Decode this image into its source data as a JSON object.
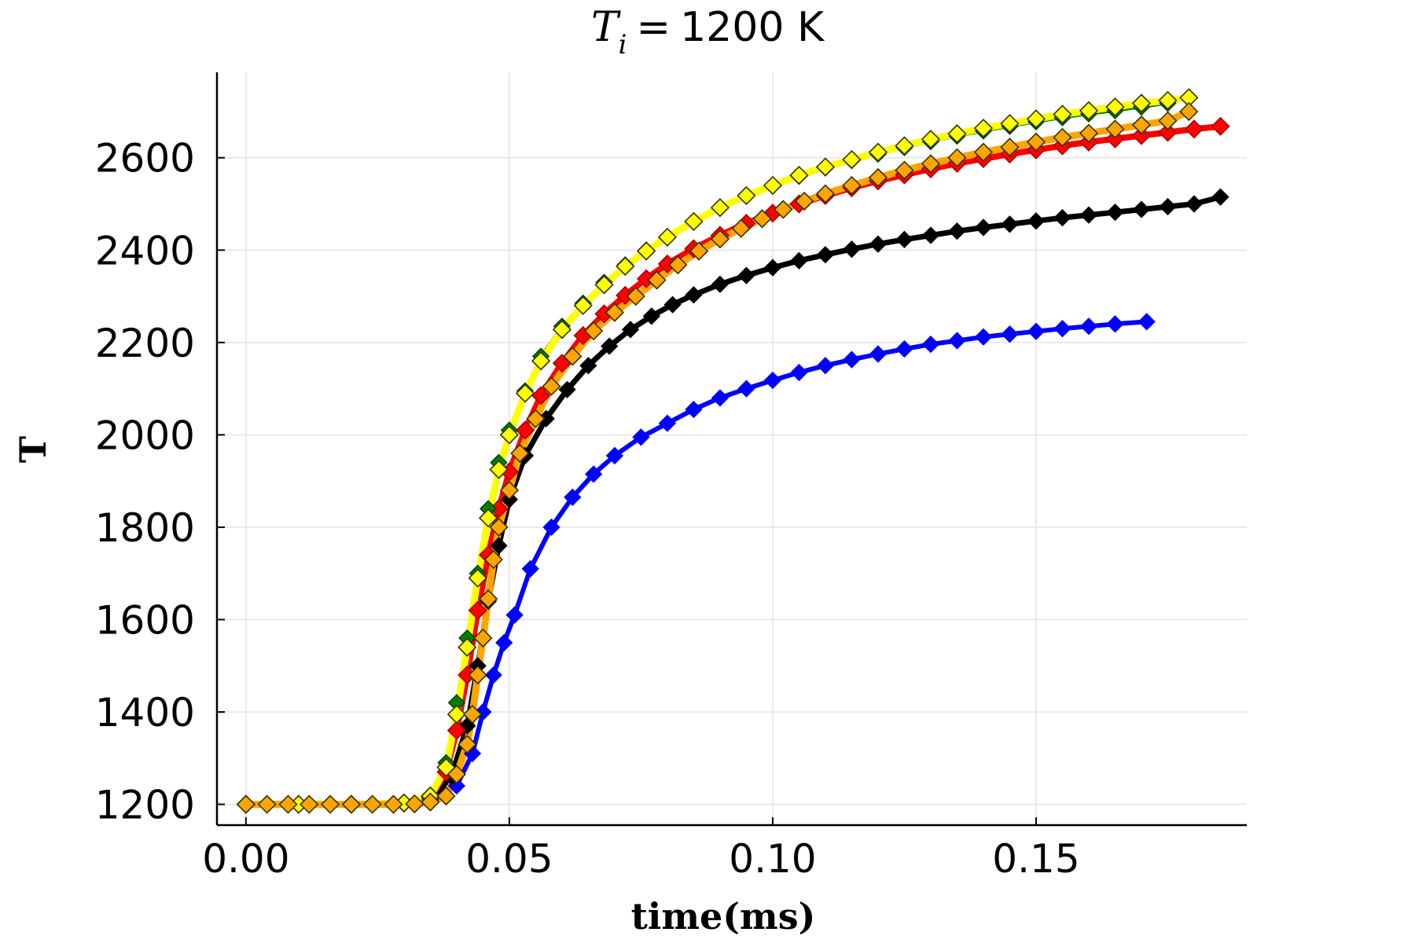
{
  "chart_data": {
    "type": "line",
    "title": {
      "math_symbol": "T",
      "math_subscript": "i",
      "math_equals": "=",
      "value_text": "1200 K"
    },
    "xlabel": "time(ms)",
    "ylabel": "T",
    "xlim": [
      -0.0055,
      0.19
    ],
    "ylim": [
      1155,
      2785
    ],
    "xticks": [
      0.0,
      0.05,
      0.1,
      0.15
    ],
    "xtick_labels": [
      "0.00",
      "0.05",
      "0.10",
      "0.15"
    ],
    "yticks": [
      1200,
      1400,
      1600,
      1800,
      2000,
      2200,
      2400,
      2600
    ],
    "ytick_labels": [
      "1200",
      "1400",
      "1600",
      "1800",
      "2000",
      "2200",
      "2400",
      "2600"
    ],
    "grid": true,
    "legend": "none",
    "series": [
      {
        "color": "#0000ff",
        "marker": "diamond",
        "marker_stroke": "#0000ff",
        "line_width": 6,
        "marker_size": 10,
        "x": [
          0.0,
          0.01,
          0.02,
          0.03,
          0.035,
          0.04,
          0.043,
          0.045,
          0.047,
          0.049,
          0.051,
          0.054,
          0.058,
          0.062,
          0.066,
          0.07,
          0.075,
          0.08,
          0.085,
          0.09,
          0.095,
          0.1,
          0.105,
          0.11,
          0.115,
          0.12,
          0.125,
          0.13,
          0.135,
          0.14,
          0.145,
          0.15,
          0.155,
          0.16,
          0.165,
          0.171
        ],
        "y": [
          1200,
          1200,
          1200,
          1201,
          1205,
          1240,
          1310,
          1400,
          1480,
          1550,
          1610,
          1710,
          1800,
          1865,
          1915,
          1955,
          1995,
          2025,
          2055,
          2080,
          2100,
          2118,
          2135,
          2150,
          2163,
          2175,
          2186,
          2196,
          2204,
          2212,
          2218,
          2224,
          2230,
          2235,
          2240,
          2245
        ]
      },
      {
        "color": "#000000",
        "marker": "diamond",
        "marker_stroke": "#000000",
        "line_width": 7,
        "marker_size": 10,
        "x": [
          0.0,
          0.01,
          0.02,
          0.03,
          0.035,
          0.039,
          0.042,
          0.044,
          0.046,
          0.048,
          0.05,
          0.053,
          0.057,
          0.061,
          0.065,
          0.069,
          0.073,
          0.077,
          0.081,
          0.085,
          0.09,
          0.095,
          0.1,
          0.105,
          0.11,
          0.115,
          0.12,
          0.125,
          0.13,
          0.135,
          0.14,
          0.145,
          0.15,
          0.155,
          0.16,
          0.165,
          0.17,
          0.175,
          0.18,
          0.185
        ],
        "y": [
          1200,
          1200,
          1200,
          1202,
          1210,
          1260,
          1370,
          1500,
          1640,
          1760,
          1860,
          1955,
          2035,
          2098,
          2150,
          2192,
          2228,
          2257,
          2282,
          2303,
          2326,
          2345,
          2362,
          2377,
          2390,
          2402,
          2413,
          2423,
          2432,
          2441,
          2449,
          2456,
          2463,
          2470,
          2476,
          2482,
          2488,
          2494,
          2500,
          2515
        ]
      },
      {
        "color": "#ff0000",
        "marker": "diamond",
        "marker_stroke": "#aa0000",
        "line_width": 8,
        "marker_size": 11,
        "x": [
          0.0,
          0.01,
          0.02,
          0.03,
          0.035,
          0.038,
          0.04,
          0.042,
          0.044,
          0.046,
          0.048,
          0.05,
          0.053,
          0.056,
          0.06,
          0.064,
          0.068,
          0.072,
          0.076,
          0.08,
          0.085,
          0.09,
          0.095,
          0.1,
          0.105,
          0.11,
          0.115,
          0.12,
          0.125,
          0.13,
          0.135,
          0.14,
          0.145,
          0.15,
          0.155,
          0.16,
          0.165,
          0.17,
          0.175,
          0.18,
          0.185
        ],
        "y": [
          1200,
          1200,
          1200,
          1203,
          1215,
          1270,
          1360,
          1480,
          1620,
          1740,
          1840,
          1920,
          2010,
          2085,
          2155,
          2215,
          2262,
          2302,
          2338,
          2370,
          2403,
          2432,
          2458,
          2480,
          2500,
          2518,
          2535,
          2550,
          2563,
          2576,
          2588,
          2598,
          2608,
          2617,
          2626,
          2634,
          2641,
          2648,
          2655,
          2662,
          2668
        ]
      },
      {
        "color": "#008000",
        "marker": "diamond",
        "marker_stroke": "#004400",
        "line_width": 4,
        "marker_size": 10,
        "x": [
          0.0,
          0.01,
          0.02,
          0.03,
          0.035,
          0.038,
          0.04,
          0.042,
          0.044,
          0.046,
          0.048,
          0.05,
          0.053,
          0.056,
          0.06,
          0.064,
          0.068,
          0.072,
          0.076,
          0.08,
          0.085,
          0.09,
          0.095,
          0.1,
          0.105,
          0.11,
          0.115,
          0.12,
          0.125,
          0.13,
          0.135,
          0.14,
          0.145,
          0.15,
          0.155,
          0.16,
          0.165,
          0.17,
          0.175,
          0.179
        ],
        "y": [
          1200,
          1200,
          1200,
          1203,
          1220,
          1290,
          1420,
          1560,
          1700,
          1840,
          1940,
          2010,
          2095,
          2170,
          2235,
          2285,
          2330,
          2368,
          2400,
          2428,
          2462,
          2492,
          2518,
          2540,
          2560,
          2578,
          2594,
          2608,
          2622,
          2635,
          2647,
          2658,
          2668,
          2678,
          2687,
          2695,
          2702,
          2710,
          2718,
          2730
        ]
      },
      {
        "color": "#ffff00",
        "marker": "diamond",
        "marker_stroke": "#333300",
        "line_width": 9,
        "marker_size": 11,
        "x": [
          0.0,
          0.01,
          0.02,
          0.03,
          0.035,
          0.038,
          0.04,
          0.042,
          0.044,
          0.046,
          0.048,
          0.05,
          0.053,
          0.056,
          0.06,
          0.064,
          0.068,
          0.072,
          0.076,
          0.08,
          0.085,
          0.09,
          0.095,
          0.1,
          0.105,
          0.11,
          0.115,
          0.12,
          0.125,
          0.13,
          0.135,
          0.14,
          0.145,
          0.15,
          0.155,
          0.16,
          0.165,
          0.17,
          0.175,
          0.179
        ],
        "y": [
          1200,
          1200,
          1200,
          1203,
          1218,
          1280,
          1395,
          1540,
          1690,
          1820,
          1925,
          2000,
          2090,
          2160,
          2228,
          2280,
          2325,
          2365,
          2398,
          2428,
          2462,
          2492,
          2518,
          2540,
          2562,
          2580,
          2596,
          2612,
          2626,
          2640,
          2652,
          2664,
          2674,
          2684,
          2694,
          2702,
          2710,
          2718,
          2724,
          2730
        ]
      },
      {
        "color": "#ffa500",
        "marker": "diamond",
        "marker_stroke": "#333300",
        "line_width": 9,
        "marker_size": 11,
        "x": [
          0.0,
          0.004,
          0.008,
          0.012,
          0.016,
          0.02,
          0.024,
          0.028,
          0.032,
          0.035,
          0.038,
          0.04,
          0.042,
          0.043,
          0.044,
          0.045,
          0.046,
          0.047,
          0.048,
          0.05,
          0.052,
          0.055,
          0.058,
          0.062,
          0.066,
          0.07,
          0.074,
          0.078,
          0.082,
          0.086,
          0.09,
          0.094,
          0.098,
          0.102,
          0.106,
          0.11,
          0.115,
          0.12,
          0.125,
          0.13,
          0.135,
          0.14,
          0.145,
          0.15,
          0.155,
          0.16,
          0.165,
          0.17,
          0.175,
          0.179
        ],
        "y": [
          1200,
          1200,
          1200,
          1200,
          1200,
          1200,
          1200,
          1200,
          1201,
          1205,
          1218,
          1265,
          1330,
          1395,
          1480,
          1560,
          1645,
          1730,
          1800,
          1880,
          1960,
          2035,
          2105,
          2170,
          2225,
          2265,
          2300,
          2335,
          2368,
          2398,
          2424,
          2447,
          2468,
          2488,
          2506,
          2522,
          2540,
          2557,
          2573,
          2587,
          2600,
          2612,
          2623,
          2634,
          2644,
          2653,
          2662,
          2671,
          2680,
          2700
        ]
      }
    ]
  }
}
